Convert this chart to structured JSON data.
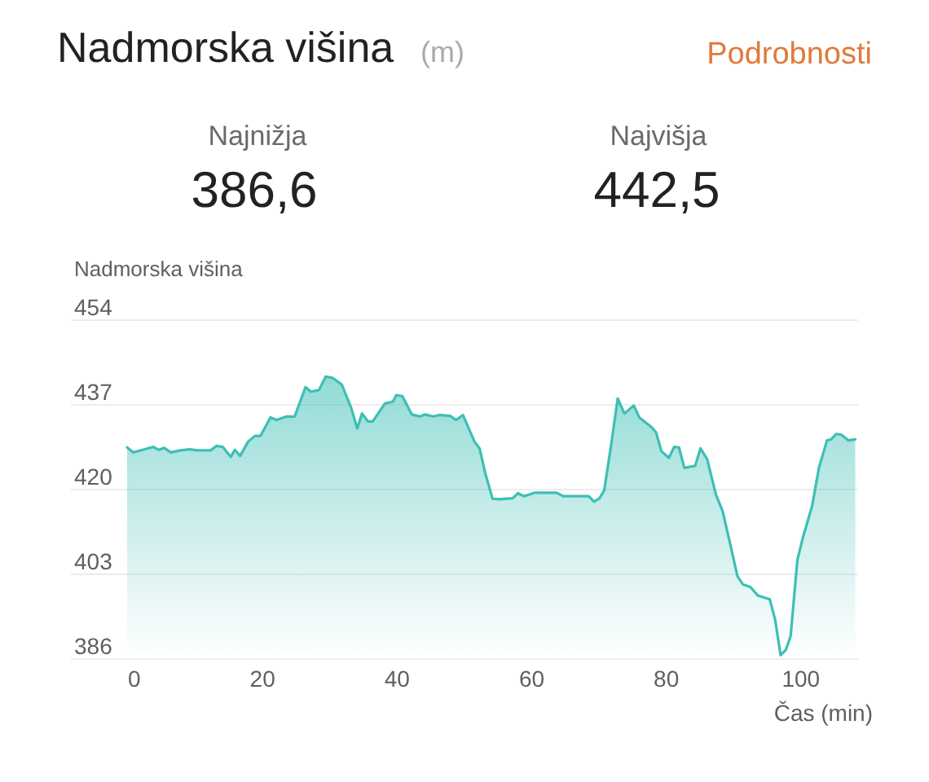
{
  "chart_data": {
    "type": "area",
    "title": "Nadmorska višina",
    "subtitle": "(m)",
    "annotations": [
      "Podrobnosti",
      "Najnižja",
      "386,6",
      "Najvišja",
      "442,5"
    ],
    "xlabel": "Čas (min)",
    "ylabel": "Nadmorska višina",
    "xlim": [
      0,
      108.5
    ],
    "xticks": [
      0,
      20,
      40,
      60,
      80,
      100
    ],
    "ylim": [
      386,
      454
    ],
    "yticks": [
      386,
      403,
      420,
      437,
      454
    ],
    "grid": "y",
    "x": [
      0,
      0.9,
      2.3,
      3.9,
      4.7,
      5.5,
      6.5,
      7.9,
      9.3,
      10.4,
      12.4,
      13.3,
      14.2,
      15.4,
      16.0,
      16.8,
      18.0,
      19.0,
      19.8,
      21.3,
      22.2,
      23.7,
      24.9,
      26.5,
      27.3,
      28.5,
      29.5,
      30.6,
      31.9,
      33.3,
      34.2,
      34.9,
      35.8,
      36.5,
      38.3,
      39.5,
      40.0,
      40.9,
      42.3,
      43.5,
      44.3,
      45.5,
      46.4,
      48.0,
      48.9,
      49.9,
      50.8,
      51.6,
      52.4,
      53.2,
      54.3,
      55.3,
      57.3,
      58.1,
      58.9,
      59.7,
      60.5,
      63.8,
      64.8,
      68.6,
      69.4,
      70.2,
      70.9,
      71.9,
      72.9,
      73.9,
      75.3,
      76.1,
      77.9,
      78.6,
      79.4,
      80.5,
      81.3,
      82.0,
      82.8,
      84.4,
      85.2,
      86.2,
      87.5,
      88.5,
      89.6,
      90.7,
      91.5,
      92.6,
      93.7,
      95.5,
      96.3,
      97.1,
      97.9,
      98.6,
      99.6,
      100.4,
      101.8,
      102.8,
      104.0,
      104.6,
      105.4,
      106.2,
      107.2,
      108.2
    ],
    "series": [
      {
        "color": "#3dbfb5",
        "values": [
          428.3,
          427.3,
          427.8,
          428.4,
          427.8,
          428.2,
          427.3,
          427.7,
          427.9,
          427.7,
          427.7,
          428.6,
          428.4,
          426.4,
          427.8,
          426.6,
          429.5,
          430.6,
          430.6,
          434.3,
          433.8,
          434.5,
          434.5,
          440.4,
          439.5,
          439.8,
          442.5,
          442.2,
          440.9,
          436.2,
          432.1,
          435.1,
          433.5,
          433.5,
          437.1,
          437.5,
          438.8,
          438.6,
          434.9,
          434.5,
          434.9,
          434.5,
          434.8,
          434.6,
          433.8,
          434.8,
          432.0,
          429.5,
          428.0,
          423.2,
          418.0,
          417.9,
          418.1,
          419.1,
          418.5,
          418.8,
          419.2,
          419.2,
          418.5,
          418.5,
          417.4,
          418.1,
          419.7,
          428.6,
          438.1,
          435.1,
          436.7,
          434.3,
          432.4,
          431.3,
          427.5,
          426.2,
          428.4,
          428.3,
          424.2,
          424.6,
          428.1,
          425.9,
          418.8,
          415.5,
          409.0,
          402.4,
          400.8,
          400.3,
          398.6,
          397.8,
          393.7,
          386.6,
          387.7,
          390.5,
          405.7,
          410.1,
          416.6,
          424.2,
          429.7,
          429.9,
          431.0,
          430.8,
          429.7,
          429.9
        ]
      }
    ]
  }
}
